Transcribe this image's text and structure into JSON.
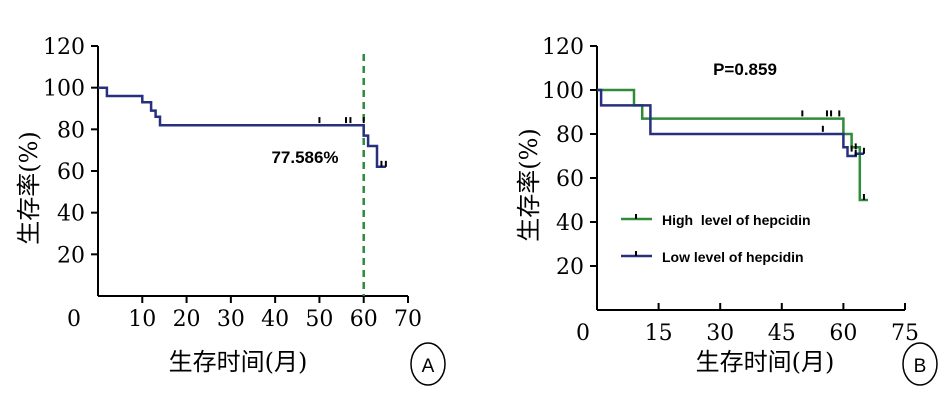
{
  "chart_data": [
    {
      "type": "line",
      "panel_label": "A",
      "xlabel": "生存时间(月)",
      "ylabel": "生存率(%)",
      "x_ticks": [
        "0",
        "10",
        "20",
        "30",
        "40",
        "50",
        "60",
        "70"
      ],
      "y_ticks": [
        "20",
        "40",
        "60",
        "80",
        "100",
        "120"
      ],
      "xlim": [
        0,
        70
      ],
      "ylim": [
        0,
        120
      ],
      "x_origin_label_value": 0,
      "grid": false,
      "annotation": {
        "text": "77.586%",
        "x": 60,
        "line_color": "#2e8b3a"
      },
      "series": [
        {
          "color": "#27307f",
          "steps": [
            [
              0,
              100
            ],
            [
              2,
              100
            ],
            [
              2,
              96
            ],
            [
              10,
              96
            ],
            [
              10,
              93
            ],
            [
              12,
              93
            ],
            [
              12,
              89
            ],
            [
              13,
              89
            ],
            [
              13,
              86
            ],
            [
              14,
              86
            ],
            [
              14,
              82
            ],
            [
              60,
              82
            ],
            [
              60,
              77
            ],
            [
              61,
              77
            ],
            [
              61,
              72
            ],
            [
              63,
              72
            ],
            [
              63,
              62
            ],
            [
              65,
              62
            ]
          ],
          "censored": [
            [
              50,
              83
            ],
            [
              56,
              83
            ],
            [
              57,
              83
            ],
            [
              60,
              83
            ],
            [
              64,
              62
            ],
            [
              65,
              62
            ]
          ]
        }
      ]
    },
    {
      "type": "line",
      "panel_label": "B",
      "title": "P=0.859",
      "xlabel": "生存时间(月)",
      "ylabel": "生存率(%)",
      "x_ticks": [
        "0",
        "15",
        "30",
        "45",
        "60",
        "75"
      ],
      "y_ticks": [
        "20",
        "40",
        "60",
        "80",
        "100",
        "120"
      ],
      "xlim": [
        0,
        75
      ],
      "ylim": [
        0,
        120
      ],
      "grid": false,
      "legend_position": "lower-right",
      "series": [
        {
          "name": "High  level of hepcidin",
          "color": "#2e8b3a",
          "steps": [
            [
              0,
              100
            ],
            [
              9,
              100
            ],
            [
              9,
              93
            ],
            [
              11,
              93
            ],
            [
              11,
              87
            ],
            [
              60,
              87
            ],
            [
              60,
              80
            ],
            [
              62,
              80
            ],
            [
              62,
              74
            ],
            [
              64,
              74
            ],
            [
              64,
              50
            ],
            [
              66,
              50
            ]
          ],
          "censored": [
            [
              50,
              88
            ],
            [
              56,
              88
            ],
            [
              57,
              88
            ],
            [
              59,
              88
            ],
            [
              63,
              73
            ],
            [
              65,
              50
            ]
          ]
        },
        {
          "name": "Low level of hepcidin",
          "color": "#27307f",
          "steps": [
            [
              0,
              100
            ],
            [
              1,
              100
            ],
            [
              1,
              93
            ],
            [
              13,
              93
            ],
            [
              13,
              80
            ],
            [
              60,
              80
            ],
            [
              60,
              74
            ],
            [
              61,
              74
            ],
            [
              61,
              70
            ],
            [
              63,
              70
            ],
            [
              63,
              71
            ],
            [
              65,
              71
            ]
          ],
          "censored": [
            [
              55,
              81
            ],
            [
              62,
              72
            ],
            [
              63,
              70
            ],
            [
              65,
              71
            ]
          ]
        }
      ]
    }
  ]
}
